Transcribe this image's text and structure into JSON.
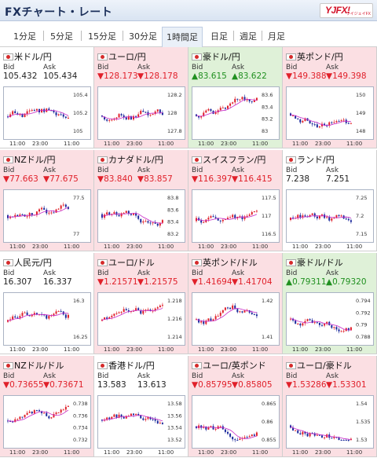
{
  "header": {
    "title": "FXチャート・レート",
    "logo_main": "YJFX!",
    "logo_sub": "ワイジェイFX"
  },
  "tabs": [
    "1分足",
    "5分足",
    "15分足",
    "30分足",
    "1時間足",
    "日足",
    "週足",
    "月足"
  ],
  "active_tab": 4,
  "labels": {
    "bid": "Bid",
    "ask": "Ask"
  },
  "colors": {
    "down_bg": "#fbdfe3",
    "up_bg": "#dff1d8",
    "down_text": "#e0202a",
    "up_text": "#209020",
    "candle_up": "#e0202a",
    "candle_down": "#1c2a9c",
    "ma": "#c828c8"
  },
  "cards": [
    {
      "pair": "米ドル/円",
      "trend": "none",
      "bid": "105.432",
      "ask": "105.434",
      "ticks": [
        "105.4",
        "105.2",
        "105"
      ],
      "x": [
        "11:00",
        "23:00",
        "11:00"
      ]
    },
    {
      "pair": "ユーロ/円",
      "trend": "down",
      "bid": "▼128.173",
      "ask": "▼128.178",
      "ticks": [
        "128.2",
        "128",
        "127.8"
      ],
      "x": [
        "11:00",
        "23:00",
        "11:00"
      ]
    },
    {
      "pair": "豪ドル/円",
      "trend": "up",
      "bid": "▲83.615",
      "ask": "▲83.622",
      "ticks": [
        "83.6",
        "83.4",
        "83.2",
        "83"
      ],
      "x": [
        "11:00",
        "23:00",
        "11:00"
      ]
    },
    {
      "pair": "英ポンド/円",
      "trend": "down",
      "bid": "▼149.388",
      "ask": "▼149.398",
      "ticks": [
        "150",
        "149",
        "148"
      ],
      "x": [
        "11:00",
        "23:00",
        "11:00"
      ]
    },
    {
      "pair": "NZドル/円",
      "trend": "down",
      "bid": "▼77.663",
      "ask": "▼77.675",
      "ticks": [
        "77.5",
        "77"
      ],
      "x": [
        "11:00",
        "23:00",
        "11:00"
      ]
    },
    {
      "pair": "カナダドル/円",
      "trend": "down",
      "bid": "▼83.840",
      "ask": "▼83.857",
      "ticks": [
        "83.8",
        "83.6",
        "83.4",
        "83.2"
      ],
      "x": [
        "11:00",
        "23:00",
        "11:00"
      ]
    },
    {
      "pair": "スイスフラン/円",
      "trend": "down",
      "bid": "▼116.397",
      "ask": "▼116.415",
      "ticks": [
        "117.5",
        "117",
        "116.5"
      ],
      "x": [
        "11:00",
        "23:00",
        "11:00"
      ]
    },
    {
      "pair": "ランド/円",
      "trend": "none",
      "bid": "7.238",
      "ask": "7.251",
      "ticks": [
        "7.25",
        "7.2",
        "7.15"
      ],
      "x": [
        "11:00",
        "23:00",
        "11:00"
      ]
    },
    {
      "pair": "人民元/円",
      "trend": "none",
      "bid": "16.307",
      "ask": "16.337",
      "ticks": [
        "16.3",
        "16.25"
      ],
      "x": [
        "11:00",
        "23:00",
        "11:00"
      ]
    },
    {
      "pair": "ユーロ/ドル",
      "trend": "down",
      "bid": "▼1.21571",
      "ask": "▼1.21575",
      "ticks": [
        "1.218",
        "1.216",
        "1.214"
      ],
      "x": [
        "11:00",
        "23:00",
        "11:00"
      ]
    },
    {
      "pair": "英ポンド/ドル",
      "trend": "down",
      "bid": "▼1.41694",
      "ask": "▼1.41704",
      "ticks": [
        "1.42",
        "1.41"
      ],
      "x": [
        "11:00",
        "23:00",
        "11:00"
      ]
    },
    {
      "pair": "豪ドル/ドル",
      "trend": "up",
      "bid": "▲0.79311",
      "ask": "▲0.79320",
      "ticks": [
        "0.794",
        "0.792",
        "0.79",
        "0.788"
      ],
      "x": [
        "11:00",
        "23:00",
        "11:00"
      ]
    },
    {
      "pair": "NZドル/ドル",
      "trend": "down",
      "bid": "▼0.73655",
      "ask": "▼0.73671",
      "ticks": [
        "0.738",
        "0.736",
        "0.734",
        "0.732"
      ],
      "x": [
        "11:00",
        "23:00",
        "11:00"
      ]
    },
    {
      "pair": "香港ドル/円",
      "trend": "none",
      "bid": "13.583",
      "ask": "13.613",
      "ticks": [
        "13.58",
        "13.56",
        "13.54",
        "13.52"
      ],
      "x": [
        "11:00",
        "23:00",
        "11:00"
      ]
    },
    {
      "pair": "ユーロ/英ポンド",
      "trend": "down",
      "bid": "▼0.85795",
      "ask": "▼0.85805",
      "ticks": [
        "0.865",
        "0.86",
        "0.855"
      ],
      "x": [
        "11:00",
        "23:00",
        "11:00"
      ]
    },
    {
      "pair": "ユーロ/豪ドル",
      "trend": "down",
      "bid": "▼1.53286",
      "ask": "▼1.53301",
      "ticks": [
        "1.54",
        "1.535",
        "1.53"
      ],
      "x": [
        "11:00",
        "23:00",
        "11:00"
      ]
    }
  ]
}
